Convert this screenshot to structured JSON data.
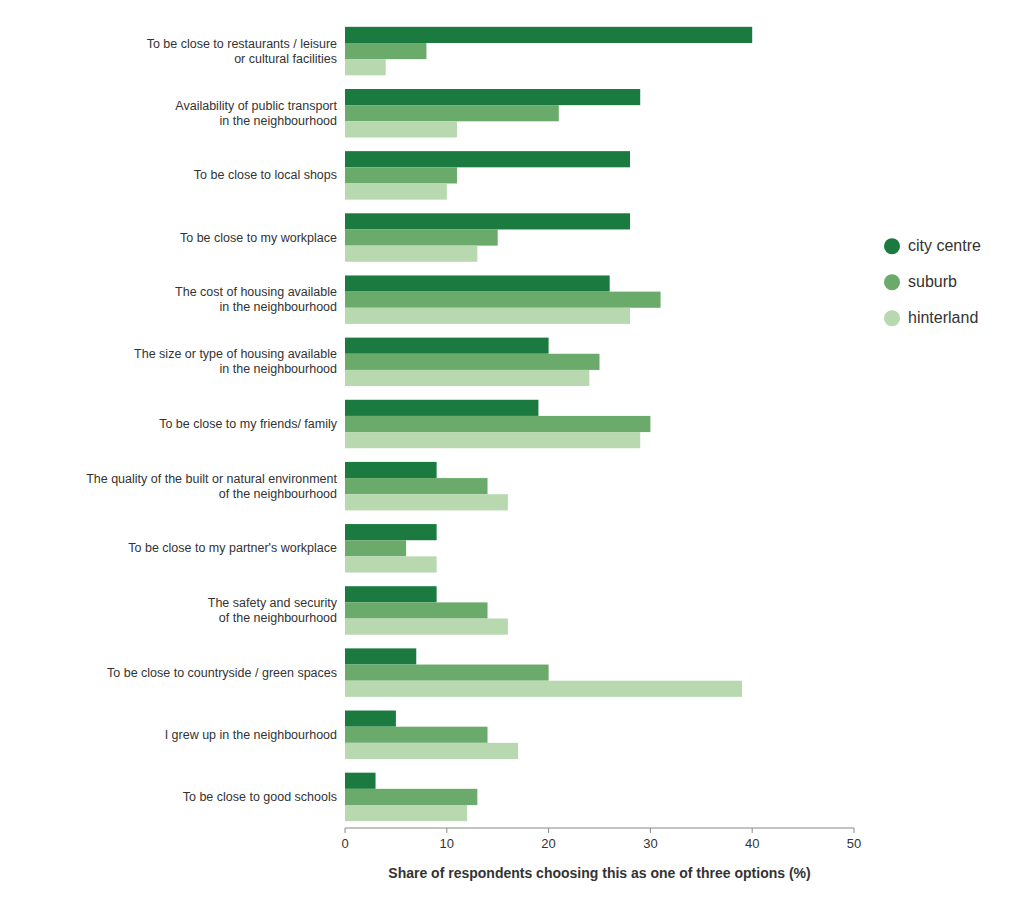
{
  "chart_data": {
    "type": "bar",
    "orientation": "horizontal",
    "categories": [
      "To be close to restaurants / leisure\nor cultural facilities",
      "Availability of public transport\nin the neighbourhood",
      "To be close to local shops",
      "To be close to my workplace",
      "The cost of housing available\nin the neighbourhood",
      "The size or type of housing available\nin the neighbourhood",
      "To be close to my friends/ family",
      "The quality of the built or natural environment\nof the neighbourhood",
      "To be close to my partner's workplace",
      "The safety and security\nof the neighbourhood",
      "To be close to countryside / green spaces",
      "I grew up in the neighbourhood",
      "To be close to good schools"
    ],
    "series": [
      {
        "name": "city centre",
        "color": "#1a7a40",
        "values": [
          40,
          29,
          28,
          28,
          26,
          20,
          19,
          9,
          9,
          9,
          7,
          5,
          3
        ]
      },
      {
        "name": "suburb",
        "color": "#6aaa6a",
        "values": [
          8,
          21,
          11,
          15,
          31,
          25,
          30,
          14,
          6,
          14,
          20,
          14,
          13
        ]
      },
      {
        "name": "hinterland",
        "color": "#b8d8b0",
        "values": [
          4,
          11,
          10,
          13,
          28,
          24,
          29,
          16,
          9,
          16,
          39,
          17,
          12
        ]
      }
    ],
    "x_label": "Share of respondents choosing this as one of three options (%)",
    "xlim": [
      0,
      50
    ],
    "xticks": [
      0,
      10,
      20,
      30,
      40,
      50
    ],
    "grid": false,
    "legend": "right"
  }
}
